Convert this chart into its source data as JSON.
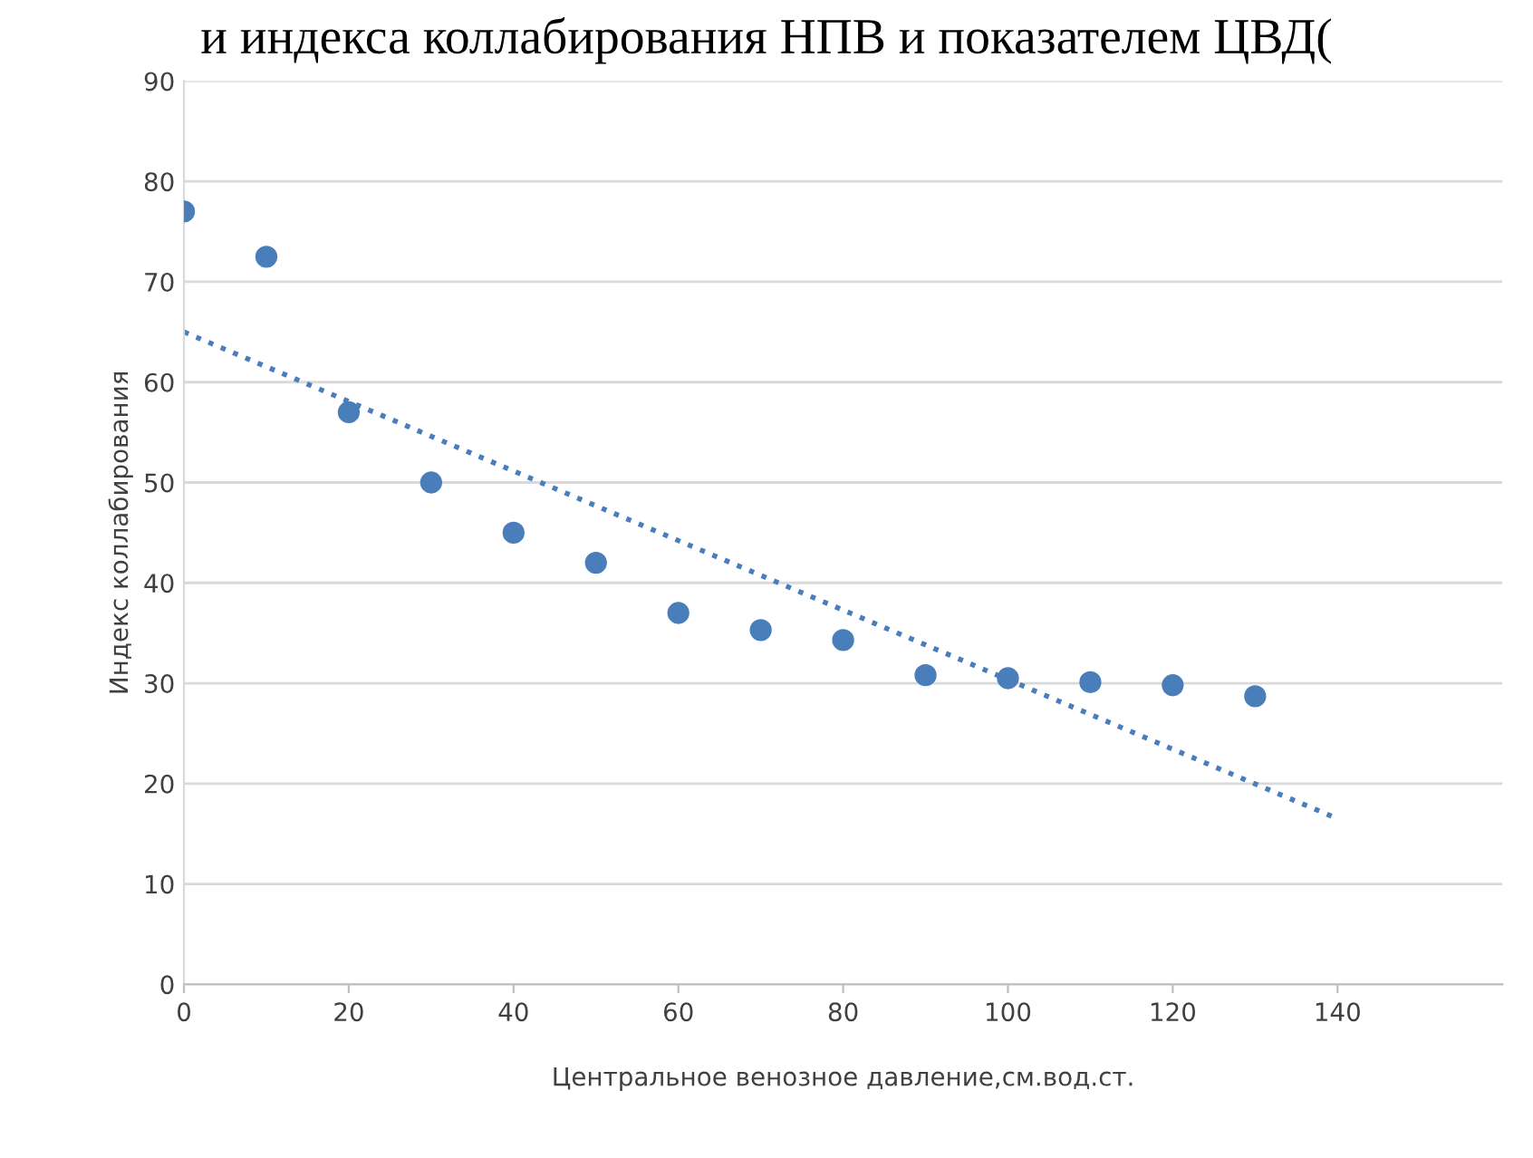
{
  "chart_data": {
    "type": "scatter",
    "title": "и индекса коллабирования НПВ и показателем ЦВД(",
    "xlabel": "Центральное венозное давление,см.вод.ст.",
    "ylabel": "Индекс коллабирования",
    "series": [
      {
        "color": "#4a7ebb",
        "marker": "circle",
        "x": [
          0,
          10,
          20,
          30,
          40,
          50,
          60,
          70,
          80,
          90,
          100,
          110,
          120,
          130
        ],
        "values": [
          77,
          72.5,
          57,
          50,
          45,
          42,
          37,
          35.3,
          34.3,
          30.8,
          30.5,
          30.1,
          29.8,
          28.7
        ]
      },
      {
        "type": "line",
        "color": "#4a7ebb",
        "line_style": "dotted",
        "marker": "none",
        "x": [
          0,
          140
        ],
        "values": [
          65,
          16.5
        ]
      }
    ],
    "xlim": [
      0,
      160
    ],
    "xticks": [
      0,
      20,
      40,
      60,
      80,
      100,
      120,
      140
    ],
    "ylim": [
      0,
      90
    ],
    "yticks": [
      0,
      10,
      20,
      30,
      40,
      50,
      60,
      70,
      80,
      90
    ],
    "grid": "y"
  }
}
